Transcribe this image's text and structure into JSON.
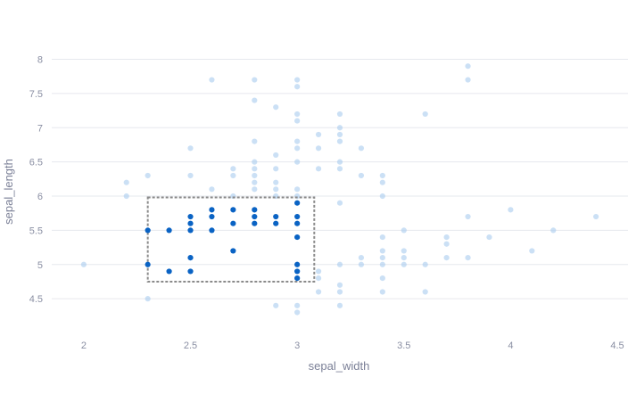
{
  "chart_data": {
    "type": "scatter",
    "xlabel": "sepal_width",
    "ylabel": "sepal_length",
    "xlim": [
      1.85,
      4.55
    ],
    "ylim": [
      4.15,
      8.15
    ],
    "x_ticks": [
      2,
      2.5,
      3,
      3.5,
      4,
      4.5
    ],
    "x_tick_labels": [
      "2",
      "2.5",
      "3",
      "3.5",
      "4",
      "4.5"
    ],
    "y_ticks": [
      4.5,
      5,
      5.5,
      6,
      6.5,
      7,
      7.5,
      8
    ],
    "y_tick_labels": [
      "4.5",
      "5",
      "5.5",
      "6",
      "6.5",
      "7",
      "7.5",
      "8"
    ],
    "grid": "horizontal",
    "colors": {
      "point": "#1f77d0",
      "selected": "#0a63c4",
      "unselected": "#a9cbee",
      "grid": "#e6e8ee",
      "selection_border": "#8a8a8a"
    },
    "selection": {
      "x": [
        2.3,
        3.08
      ],
      "y": [
        4.75,
        5.98
      ]
    },
    "points": [
      {
        "x": 2.0,
        "y": 5.0
      },
      {
        "x": 2.2,
        "y": 6.0
      },
      {
        "x": 2.2,
        "y": 6.2
      },
      {
        "x": 2.3,
        "y": 4.5
      },
      {
        "x": 2.3,
        "y": 6.3
      },
      {
        "x": 2.5,
        "y": 6.3
      },
      {
        "x": 2.5,
        "y": 6.7
      },
      {
        "x": 2.6,
        "y": 6.1
      },
      {
        "x": 2.6,
        "y": 7.7
      },
      {
        "x": 2.7,
        "y": 6.0
      },
      {
        "x": 2.7,
        "y": 6.3
      },
      {
        "x": 2.7,
        "y": 6.4
      },
      {
        "x": 2.8,
        "y": 6.1
      },
      {
        "x": 2.8,
        "y": 6.2
      },
      {
        "x": 2.8,
        "y": 6.3
      },
      {
        "x": 2.8,
        "y": 6.4
      },
      {
        "x": 2.8,
        "y": 6.5
      },
      {
        "x": 2.8,
        "y": 6.8
      },
      {
        "x": 2.8,
        "y": 7.4
      },
      {
        "x": 2.8,
        "y": 7.7
      },
      {
        "x": 2.9,
        "y": 4.4
      },
      {
        "x": 2.9,
        "y": 6.0
      },
      {
        "x": 2.9,
        "y": 6.1
      },
      {
        "x": 2.9,
        "y": 6.2
      },
      {
        "x": 2.9,
        "y": 6.4
      },
      {
        "x": 2.9,
        "y": 6.6
      },
      {
        "x": 2.9,
        "y": 7.3
      },
      {
        "x": 3.0,
        "y": 4.3
      },
      {
        "x": 3.0,
        "y": 4.4
      },
      {
        "x": 3.0,
        "y": 6.0
      },
      {
        "x": 3.0,
        "y": 6.1
      },
      {
        "x": 3.0,
        "y": 6.5
      },
      {
        "x": 3.0,
        "y": 6.7
      },
      {
        "x": 3.0,
        "y": 6.8
      },
      {
        "x": 3.0,
        "y": 7.1
      },
      {
        "x": 3.0,
        "y": 7.2
      },
      {
        "x": 3.0,
        "y": 7.6
      },
      {
        "x": 3.0,
        "y": 7.7
      },
      {
        "x": 3.1,
        "y": 4.6
      },
      {
        "x": 3.1,
        "y": 4.8
      },
      {
        "x": 3.1,
        "y": 4.9
      },
      {
        "x": 3.1,
        "y": 6.4
      },
      {
        "x": 3.1,
        "y": 6.7
      },
      {
        "x": 3.1,
        "y": 6.9
      },
      {
        "x": 3.2,
        "y": 4.4
      },
      {
        "x": 3.2,
        "y": 4.6
      },
      {
        "x": 3.2,
        "y": 4.7
      },
      {
        "x": 3.2,
        "y": 5.0
      },
      {
        "x": 3.2,
        "y": 5.9
      },
      {
        "x": 3.2,
        "y": 6.4
      },
      {
        "x": 3.2,
        "y": 6.5
      },
      {
        "x": 3.2,
        "y": 6.8
      },
      {
        "x": 3.2,
        "y": 6.9
      },
      {
        "x": 3.2,
        "y": 7.0
      },
      {
        "x": 3.2,
        "y": 7.2
      },
      {
        "x": 3.3,
        "y": 5.0
      },
      {
        "x": 3.3,
        "y": 5.1
      },
      {
        "x": 3.3,
        "y": 6.3
      },
      {
        "x": 3.3,
        "y": 6.7
      },
      {
        "x": 3.4,
        "y": 4.6
      },
      {
        "x": 3.4,
        "y": 4.8
      },
      {
        "x": 3.4,
        "y": 5.0
      },
      {
        "x": 3.4,
        "y": 5.1
      },
      {
        "x": 3.4,
        "y": 5.2
      },
      {
        "x": 3.4,
        "y": 5.4
      },
      {
        "x": 3.4,
        "y": 6.0
      },
      {
        "x": 3.4,
        "y": 6.2
      },
      {
        "x": 3.4,
        "y": 6.3
      },
      {
        "x": 3.5,
        "y": 5.0
      },
      {
        "x": 3.5,
        "y": 5.1
      },
      {
        "x": 3.5,
        "y": 5.2
      },
      {
        "x": 3.5,
        "y": 5.5
      },
      {
        "x": 3.6,
        "y": 4.6
      },
      {
        "x": 3.6,
        "y": 5.0
      },
      {
        "x": 3.6,
        "y": 7.2
      },
      {
        "x": 3.7,
        "y": 5.1
      },
      {
        "x": 3.7,
        "y": 5.3
      },
      {
        "x": 3.7,
        "y": 5.4
      },
      {
        "x": 3.8,
        "y": 5.1
      },
      {
        "x": 3.8,
        "y": 5.7
      },
      {
        "x": 3.8,
        "y": 7.7
      },
      {
        "x": 3.8,
        "y": 7.9
      },
      {
        "x": 3.9,
        "y": 5.4
      },
      {
        "x": 4.0,
        "y": 5.8
      },
      {
        "x": 4.1,
        "y": 5.2
      },
      {
        "x": 4.2,
        "y": 5.5
      },
      {
        "x": 4.4,
        "y": 5.7
      }
    ],
    "selected_points": [
      {
        "x": 2.3,
        "y": 5.0
      },
      {
        "x": 2.3,
        "y": 5.5
      },
      {
        "x": 2.4,
        "y": 4.9
      },
      {
        "x": 2.4,
        "y": 5.5
      },
      {
        "x": 2.5,
        "y": 4.9
      },
      {
        "x": 2.5,
        "y": 5.1
      },
      {
        "x": 2.5,
        "y": 5.5
      },
      {
        "x": 2.5,
        "y": 5.6
      },
      {
        "x": 2.5,
        "y": 5.7
      },
      {
        "x": 2.6,
        "y": 5.5
      },
      {
        "x": 2.6,
        "y": 5.7
      },
      {
        "x": 2.6,
        "y": 5.8
      },
      {
        "x": 2.7,
        "y": 5.2
      },
      {
        "x": 2.7,
        "y": 5.6
      },
      {
        "x": 2.7,
        "y": 5.8
      },
      {
        "x": 2.8,
        "y": 5.6
      },
      {
        "x": 2.8,
        "y": 5.7
      },
      {
        "x": 2.8,
        "y": 5.8
      },
      {
        "x": 2.9,
        "y": 5.6
      },
      {
        "x": 2.9,
        "y": 5.7
      },
      {
        "x": 3.0,
        "y": 4.8
      },
      {
        "x": 3.0,
        "y": 4.9
      },
      {
        "x": 3.0,
        "y": 5.0
      },
      {
        "x": 3.0,
        "y": 5.4
      },
      {
        "x": 3.0,
        "y": 5.6
      },
      {
        "x": 3.0,
        "y": 5.7
      },
      {
        "x": 3.0,
        "y": 5.9
      }
    ]
  }
}
